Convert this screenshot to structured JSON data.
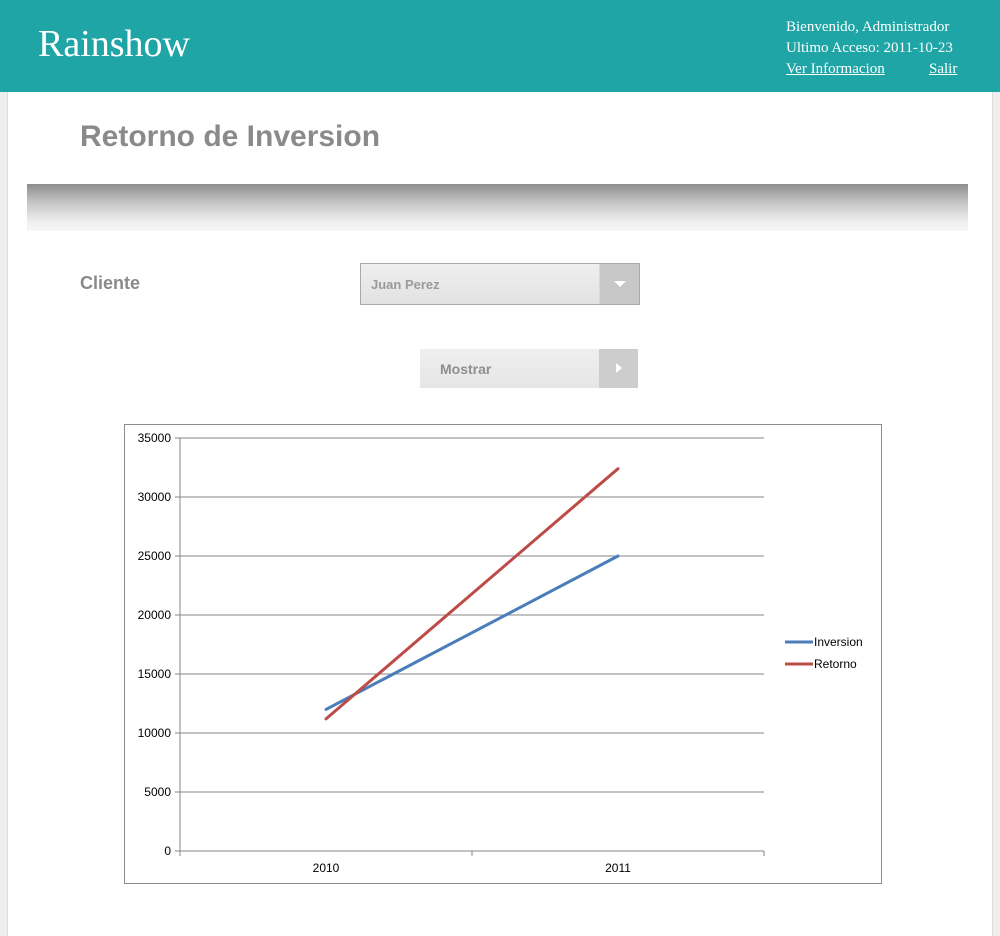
{
  "header": {
    "logo": "Rainshow",
    "welcome": "Bienvenido, Administrador",
    "last_access": "Ultimo Acceso: 2011-10-23",
    "info_link": "Ver Informacion",
    "logout_link": "Salir"
  },
  "page": {
    "title": "Retorno de Inversion"
  },
  "form": {
    "client_label": "Cliente",
    "client_value": "Juan Perez",
    "show_button": "Mostrar"
  },
  "colors": {
    "header_bg": "#1fa5a5",
    "series_inversion": "#4a7ebb",
    "series_retorno": "#be4b48"
  },
  "icons": {
    "select_arrow": "chevron-down-icon",
    "button_arrow": "chevron-right-icon"
  },
  "chart_data": {
    "type": "line",
    "categories": [
      "2010",
      "2011"
    ],
    "series": [
      {
        "name": "Inversion",
        "values": [
          12000,
          25000
        ],
        "color": "#4a7ebb"
      },
      {
        "name": "Retorno",
        "values": [
          11200,
          32400
        ],
        "color": "#be4b48"
      }
    ],
    "ylim": [
      0,
      35000
    ],
    "yticks": [
      "0",
      "5000",
      "10000",
      "15000",
      "20000",
      "25000",
      "30000",
      "35000"
    ],
    "grid": true,
    "legend": "right"
  }
}
